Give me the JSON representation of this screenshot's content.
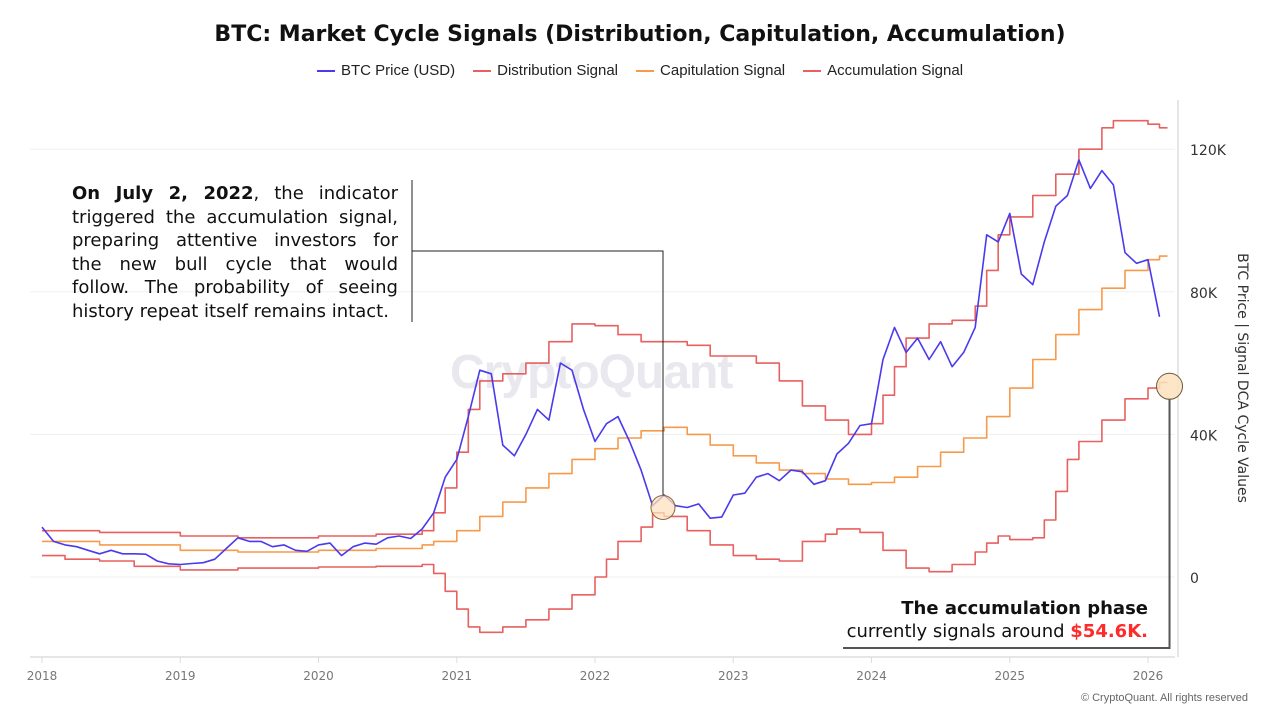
{
  "chart_data": {
    "type": "line",
    "title": "BTC: Market Cycle Signals (Distribution, Capitulation, Accumulation)",
    "ylabel": "BTC Price | Signal DCA Cycle Values",
    "xlabel": "",
    "x_ticks": [
      "2018",
      "2019",
      "2020",
      "2021",
      "2022",
      "2023",
      "2024",
      "2025",
      "2026"
    ],
    "y_ticks": [
      {
        "value": 0,
        "label": "0"
      },
      {
        "value": 40000,
        "label": "40K"
      },
      {
        "value": 80000,
        "label": "80K"
      },
      {
        "value": 120000,
        "label": "120K"
      }
    ],
    "xlim": [
      "2017-12",
      "2026-04"
    ],
    "ylim": [
      -22000,
      134000
    ],
    "grid": "horizontal",
    "legend_position": "top",
    "series": [
      {
        "name": "BTC Price (USD)",
        "color": "#4a3aee",
        "style": "line",
        "points": [
          [
            "2018-01",
            14000
          ],
          [
            "2018-02",
            10000
          ],
          [
            "2018-03",
            9000
          ],
          [
            "2018-04",
            8500
          ],
          [
            "2018-05",
            7500
          ],
          [
            "2018-06",
            6500
          ],
          [
            "2018-07",
            7500
          ],
          [
            "2018-08",
            6500
          ],
          [
            "2018-09",
            6500
          ],
          [
            "2018-10",
            6400
          ],
          [
            "2018-11",
            4500
          ],
          [
            "2018-12",
            3700
          ],
          [
            "2019-01",
            3500
          ],
          [
            "2019-02",
            3800
          ],
          [
            "2019-03",
            4000
          ],
          [
            "2019-04",
            5000
          ],
          [
            "2019-05",
            8000
          ],
          [
            "2019-06",
            11000
          ],
          [
            "2019-07",
            10000
          ],
          [
            "2019-08",
            10000
          ],
          [
            "2019-09",
            8500
          ],
          [
            "2019-10",
            9000
          ],
          [
            "2019-11",
            7500
          ],
          [
            "2019-12",
            7200
          ],
          [
            "2020-01",
            9000
          ],
          [
            "2020-02",
            9500
          ],
          [
            "2020-03",
            6000
          ],
          [
            "2020-04",
            8500
          ],
          [
            "2020-05",
            9500
          ],
          [
            "2020-06",
            9200
          ],
          [
            "2020-07",
            11000
          ],
          [
            "2020-08",
            11500
          ],
          [
            "2020-09",
            10800
          ],
          [
            "2020-10",
            13500
          ],
          [
            "2020-11",
            18000
          ],
          [
            "2020-12",
            28000
          ],
          [
            "2021-01",
            33000
          ],
          [
            "2021-02",
            45000
          ],
          [
            "2021-03",
            58000
          ],
          [
            "2021-04",
            57000
          ],
          [
            "2021-05",
            37000
          ],
          [
            "2021-06",
            34000
          ],
          [
            "2021-07",
            40000
          ],
          [
            "2021-08",
            47000
          ],
          [
            "2021-09",
            44000
          ],
          [
            "2021-10",
            60000
          ],
          [
            "2021-11",
            58000
          ],
          [
            "2021-12",
            47000
          ],
          [
            "2022-01",
            38000
          ],
          [
            "2022-02",
            43000
          ],
          [
            "2022-03",
            45000
          ],
          [
            "2022-04",
            38000
          ],
          [
            "2022-05",
            30000
          ],
          [
            "2022-06",
            20000
          ],
          [
            "2022-07",
            23000
          ],
          [
            "2022-08",
            20000
          ],
          [
            "2022-09",
            19500
          ],
          [
            "2022-10",
            20500
          ],
          [
            "2022-11",
            16500
          ],
          [
            "2022-12",
            16800
          ],
          [
            "2023-01",
            23000
          ],
          [
            "2023-02",
            23500
          ],
          [
            "2023-03",
            28000
          ],
          [
            "2023-04",
            29000
          ],
          [
            "2023-05",
            27000
          ],
          [
            "2023-06",
            30000
          ],
          [
            "2023-07",
            29500
          ],
          [
            "2023-08",
            26000
          ],
          [
            "2023-09",
            27000
          ],
          [
            "2023-10",
            34500
          ],
          [
            "2023-11",
            37500
          ],
          [
            "2023-12",
            42500
          ],
          [
            "2024-01",
            43000
          ],
          [
            "2024-02",
            61000
          ],
          [
            "2024-03",
            70000
          ],
          [
            "2024-04",
            63000
          ],
          [
            "2024-05",
            67000
          ],
          [
            "2024-06",
            61000
          ],
          [
            "2024-07",
            66000
          ],
          [
            "2024-08",
            59000
          ],
          [
            "2024-09",
            63000
          ],
          [
            "2024-10",
            70000
          ],
          [
            "2024-11",
            96000
          ],
          [
            "2024-12",
            94000
          ],
          [
            "2025-01",
            102000
          ],
          [
            "2025-02",
            85000
          ],
          [
            "2025-03",
            82000
          ],
          [
            "2025-04",
            94000
          ],
          [
            "2025-05",
            104000
          ],
          [
            "2025-06",
            107000
          ],
          [
            "2025-07",
            117000
          ],
          [
            "2025-08",
            109000
          ],
          [
            "2025-09",
            114000
          ],
          [
            "2025-10",
            110000
          ],
          [
            "2025-11",
            91000
          ],
          [
            "2025-12",
            88000
          ],
          [
            "2026-01",
            89000
          ],
          [
            "2026-02",
            73000
          ]
        ]
      },
      {
        "name": "Distribution Signal",
        "color": "#e8605f",
        "style": "step",
        "points": [
          [
            "2018-01",
            13000
          ],
          [
            "2018-06",
            12500
          ],
          [
            "2019-01",
            11500
          ],
          [
            "2019-06",
            11000
          ],
          [
            "2020-01",
            11500
          ],
          [
            "2020-06",
            12000
          ],
          [
            "2020-10",
            13000
          ],
          [
            "2020-11",
            18000
          ],
          [
            "2020-12",
            25000
          ],
          [
            "2021-01",
            35000
          ],
          [
            "2021-02",
            47000
          ],
          [
            "2021-03",
            55000
          ],
          [
            "2021-05",
            57000
          ],
          [
            "2021-07",
            60000
          ],
          [
            "2021-09",
            66000
          ],
          [
            "2021-11",
            71000
          ],
          [
            "2022-01",
            70500
          ],
          [
            "2022-03",
            68000
          ],
          [
            "2022-05",
            66000
          ],
          [
            "2022-07",
            66000
          ],
          [
            "2022-09",
            65000
          ],
          [
            "2022-11",
            62000
          ],
          [
            "2023-01",
            62000
          ],
          [
            "2023-03",
            60000
          ],
          [
            "2023-05",
            55000
          ],
          [
            "2023-07",
            48000
          ],
          [
            "2023-09",
            44000
          ],
          [
            "2023-11",
            40000
          ],
          [
            "2024-01",
            43000
          ],
          [
            "2024-02",
            51000
          ],
          [
            "2024-03",
            59000
          ],
          [
            "2024-04",
            67000
          ],
          [
            "2024-06",
            71000
          ],
          [
            "2024-08",
            72000
          ],
          [
            "2024-10",
            76000
          ],
          [
            "2024-11",
            86000
          ],
          [
            "2024-12",
            96000
          ],
          [
            "2025-01",
            101000
          ],
          [
            "2025-03",
            107000
          ],
          [
            "2025-05",
            113000
          ],
          [
            "2025-07",
            120000
          ],
          [
            "2025-09",
            126000
          ],
          [
            "2025-10",
            128000
          ],
          [
            "2026-01",
            127000
          ],
          [
            "2026-02",
            126000
          ]
        ]
      },
      {
        "name": "Capitulation Signal",
        "color": "#f79a4a",
        "style": "step",
        "points": [
          [
            "2018-01",
            10000
          ],
          [
            "2018-06",
            9000
          ],
          [
            "2019-01",
            7500
          ],
          [
            "2019-06",
            7000
          ],
          [
            "2020-01",
            7500
          ],
          [
            "2020-06",
            8000
          ],
          [
            "2020-10",
            9000
          ],
          [
            "2020-11",
            10000
          ],
          [
            "2021-01",
            13000
          ],
          [
            "2021-03",
            17000
          ],
          [
            "2021-05",
            21000
          ],
          [
            "2021-07",
            25000
          ],
          [
            "2021-09",
            29000
          ],
          [
            "2021-11",
            33000
          ],
          [
            "2022-01",
            36000
          ],
          [
            "2022-03",
            39000
          ],
          [
            "2022-05",
            41000
          ],
          [
            "2022-07",
            42000
          ],
          [
            "2022-09",
            40000
          ],
          [
            "2022-11",
            37000
          ],
          [
            "2023-01",
            34000
          ],
          [
            "2023-03",
            32000
          ],
          [
            "2023-05",
            30000
          ],
          [
            "2023-07",
            29000
          ],
          [
            "2023-09",
            27500
          ],
          [
            "2023-11",
            26000
          ],
          [
            "2024-01",
            26500
          ],
          [
            "2024-03",
            28000
          ],
          [
            "2024-05",
            31000
          ],
          [
            "2024-07",
            35000
          ],
          [
            "2024-09",
            39000
          ],
          [
            "2024-11",
            45000
          ],
          [
            "2025-01",
            53000
          ],
          [
            "2025-03",
            61000
          ],
          [
            "2025-05",
            68000
          ],
          [
            "2025-07",
            75000
          ],
          [
            "2025-09",
            81000
          ],
          [
            "2025-11",
            86000
          ],
          [
            "2026-01",
            89000
          ],
          [
            "2026-02",
            90000
          ]
        ]
      },
      {
        "name": "Accumulation Signal",
        "color": "#e8605f",
        "style": "step",
        "points": [
          [
            "2018-01",
            6000
          ],
          [
            "2018-03",
            5000
          ],
          [
            "2018-06",
            4500
          ],
          [
            "2018-09",
            3000
          ],
          [
            "2019-01",
            2000
          ],
          [
            "2019-06",
            2500
          ],
          [
            "2020-01",
            2800
          ],
          [
            "2020-06",
            3000
          ],
          [
            "2020-10",
            3500
          ],
          [
            "2020-11",
            1000
          ],
          [
            "2020-12",
            -4000
          ],
          [
            "2021-01",
            -9000
          ],
          [
            "2021-02",
            -14000
          ],
          [
            "2021-03",
            -15500
          ],
          [
            "2021-05",
            -14000
          ],
          [
            "2021-07",
            -12000
          ],
          [
            "2021-09",
            -9000
          ],
          [
            "2021-11",
            -5000
          ],
          [
            "2022-01",
            0
          ],
          [
            "2022-02",
            5000
          ],
          [
            "2022-03",
            10000
          ],
          [
            "2022-05",
            14000
          ],
          [
            "2022-06",
            18000
          ],
          [
            "2022-07",
            17000
          ],
          [
            "2022-09",
            13000
          ],
          [
            "2022-11",
            9000
          ],
          [
            "2023-01",
            6000
          ],
          [
            "2023-03",
            5000
          ],
          [
            "2023-05",
            4500
          ],
          [
            "2023-07",
            10000
          ],
          [
            "2023-09",
            12000
          ],
          [
            "2023-10",
            13500
          ],
          [
            "2023-12",
            12500
          ],
          [
            "2024-02",
            7500
          ],
          [
            "2024-04",
            2500
          ],
          [
            "2024-06",
            1500
          ],
          [
            "2024-08",
            3500
          ],
          [
            "2024-10",
            7000
          ],
          [
            "2024-11",
            9500
          ],
          [
            "2024-12",
            11500
          ],
          [
            "2025-01",
            10500
          ],
          [
            "2025-03",
            11000
          ],
          [
            "2025-04",
            16000
          ],
          [
            "2025-05",
            24000
          ],
          [
            "2025-06",
            33000
          ],
          [
            "2025-07",
            38000
          ],
          [
            "2025-09",
            44000
          ],
          [
            "2025-11",
            50000
          ],
          [
            "2026-01",
            53000
          ],
          [
            "2026-02",
            54600
          ]
        ]
      }
    ],
    "markers": [
      {
        "date": "2022-07-02",
        "value": 19500,
        "color": "#fde2bd"
      },
      {
        "date": "2026-02",
        "value": 53500,
        "color": "#fde2bd"
      }
    ],
    "annotations": {
      "left_bold": "On July 2, 2022",
      "left_rest": ", the indicator triggered the accumulation signal, preparing attentive investors for the new bull cycle that would follow. The probability of seeing history repeat itself remains intact.",
      "right_line1": "The accumulation phase",
      "right_line2": "currently signals around ",
      "right_value": "$54.6K."
    }
  },
  "watermark": "CryptoQuant",
  "copyright": "© CryptoQuant. All rights reserved"
}
